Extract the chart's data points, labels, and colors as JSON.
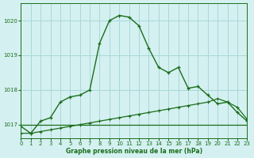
{
  "title": "Graphe pression niveau de la mer (hPa)",
  "bg_color": "#d4f0f0",
  "grid_color": "#a8d8d8",
  "line_color_dark": "#1a6e1a",
  "line_color_med": "#2a8a2a",
  "xlim": [
    0,
    23
  ],
  "ylim": [
    1016.6,
    1020.5
  ],
  "yticks": [
    1017,
    1018,
    1019,
    1020
  ],
  "xticks": [
    0,
    1,
    2,
    3,
    4,
    5,
    6,
    7,
    8,
    9,
    10,
    11,
    12,
    13,
    14,
    15,
    16,
    17,
    18,
    19,
    20,
    21,
    22,
    23
  ],
  "flat_line_x": [
    0,
    23
  ],
  "flat_line_y": [
    1017.0,
    1017.0
  ],
  "diag_line_x": [
    0,
    1,
    2,
    3,
    4,
    5,
    6,
    7,
    8,
    9,
    10,
    11,
    12,
    13,
    14,
    15,
    16,
    17,
    18,
    19,
    20,
    21,
    22,
    23
  ],
  "diag_line_y": [
    1016.75,
    1016.75,
    1016.8,
    1016.85,
    1016.9,
    1016.95,
    1017.0,
    1017.05,
    1017.1,
    1017.15,
    1017.2,
    1017.25,
    1017.3,
    1017.35,
    1017.4,
    1017.45,
    1017.5,
    1017.55,
    1017.6,
    1017.65,
    1017.75,
    1017.65,
    1017.5,
    1017.15
  ],
  "main_x": [
    0,
    1,
    2,
    3,
    4,
    5,
    6,
    7,
    8,
    9,
    10,
    11,
    12,
    13,
    14,
    15,
    16,
    17,
    18,
    19,
    20,
    21,
    22,
    23
  ],
  "main_y": [
    1016.95,
    1016.75,
    1017.1,
    1017.2,
    1017.65,
    1017.8,
    1017.85,
    1018.0,
    1019.35,
    1020.0,
    1020.15,
    1020.1,
    1019.85,
    1019.2,
    1018.65,
    1018.5,
    1018.65,
    1018.05,
    1018.1,
    1017.85,
    1017.6,
    1017.65,
    1017.35,
    1017.1
  ]
}
